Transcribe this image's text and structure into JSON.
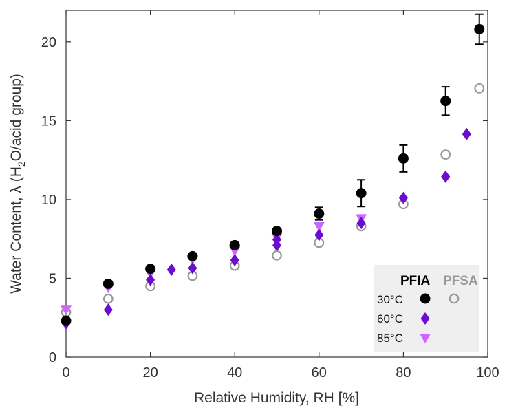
{
  "chart_data": {
    "type": "scatter",
    "xlabel": "Relative Humidity, RH [%]",
    "ylabel": {
      "prefix": "Water Content,  λ (H",
      "sub": "2",
      "suffix": "O/acid group)"
    },
    "xlim": [
      0,
      100
    ],
    "ylim": [
      0,
      22
    ],
    "xticks": [
      "0",
      "20",
      "40",
      "60",
      "80",
      "100"
    ],
    "yticks": [
      "0",
      "5",
      "10",
      "15",
      "20"
    ],
    "grid": false,
    "legend_position": "bottom-right",
    "legend": {
      "col_pfia": "PFIA",
      "col_pfsa": "PFSA",
      "rows": [
        "30°C",
        "60°C",
        "85°C"
      ]
    },
    "colors": {
      "pfia_30": "#000000",
      "pfia_60": "#6a0dcc",
      "pfia_85": "#cc66ff",
      "pfsa_30": "#999999",
      "legend_bg": "#efefef",
      "pfsa_header": "#999999"
    },
    "series": [
      {
        "name": "PFIA 30°C",
        "marker": "filled-circle",
        "points": [
          {
            "x": 0,
            "y": 2.3
          },
          {
            "x": 10,
            "y": 4.65
          },
          {
            "x": 20,
            "y": 5.6
          },
          {
            "x": 30,
            "y": 6.4
          },
          {
            "x": 40,
            "y": 7.1
          },
          {
            "x": 50,
            "y": 8.0
          },
          {
            "x": 60,
            "y": 9.1,
            "err": 0.4
          },
          {
            "x": 70,
            "y": 10.4,
            "err": 0.85
          },
          {
            "x": 80,
            "y": 12.6,
            "err": 0.85
          },
          {
            "x": 90,
            "y": 16.25,
            "err": 0.9
          },
          {
            "x": 98,
            "y": 20.8,
            "err": 0.95
          }
        ]
      },
      {
        "name": "PFIA 60°C",
        "marker": "diamond",
        "points": [
          {
            "x": 0,
            "y": 2.15
          },
          {
            "x": 10,
            "y": 3.0
          },
          {
            "x": 20,
            "y": 4.9
          },
          {
            "x": 25,
            "y": 5.55
          },
          {
            "x": 30,
            "y": 5.65
          },
          {
            "x": 40,
            "y": 6.15
          },
          {
            "x": 50,
            "y": 7.1
          },
          {
            "x": 50,
            "y": 7.45
          },
          {
            "x": 60,
            "y": 7.75
          },
          {
            "x": 70,
            "y": 8.5
          },
          {
            "x": 80,
            "y": 10.1
          },
          {
            "x": 90,
            "y": 11.45
          },
          {
            "x": 95,
            "y": 14.15
          }
        ]
      },
      {
        "name": "PFIA 85°C",
        "marker": "triangle-down",
        "points": [
          {
            "x": 0,
            "y": 3.0
          },
          {
            "x": 10,
            "y": 4.4
          },
          {
            "x": 20,
            "y": 5.3
          },
          {
            "x": 30,
            "y": 6.2
          },
          {
            "x": 40,
            "y": 6.75
          },
          {
            "x": 50,
            "y": 7.6
          },
          {
            "x": 60,
            "y": 8.3
          },
          {
            "x": 70,
            "y": 8.8
          }
        ]
      },
      {
        "name": "PFSA 30°C",
        "marker": "open-circle",
        "points": [
          {
            "x": 0,
            "y": 2.85
          },
          {
            "x": 10,
            "y": 3.7
          },
          {
            "x": 20,
            "y": 4.5
          },
          {
            "x": 30,
            "y": 5.15
          },
          {
            "x": 40,
            "y": 5.8
          },
          {
            "x": 50,
            "y": 6.45
          },
          {
            "x": 60,
            "y": 7.25
          },
          {
            "x": 70,
            "y": 8.3
          },
          {
            "x": 80,
            "y": 9.7
          },
          {
            "x": 90,
            "y": 12.85
          },
          {
            "x": 98,
            "y": 17.05
          }
        ]
      }
    ]
  }
}
